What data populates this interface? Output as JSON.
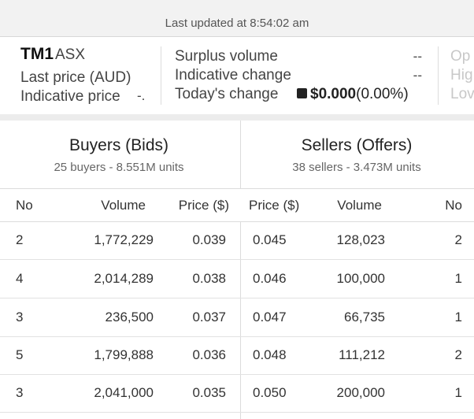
{
  "header": {
    "updated": "Last updated at 8:54:02 am"
  },
  "summary": {
    "symbol": "TM1",
    "exchange": "ASX",
    "last_price_label": "Last price (AUD)",
    "indicative_price_label": "Indicative price",
    "indicative_price_value": "-.",
    "surplus_volume_label": "Surplus volume",
    "surplus_volume_value": "--",
    "indicative_change_label": "Indicative change",
    "indicative_change_value": "--",
    "todays_change_label": "Today's change",
    "todays_change_amount": "$0.000",
    "todays_change_pct": "(0.00%)",
    "right_labels": [
      "Op",
      "Hig",
      "Lov"
    ]
  },
  "buyers": {
    "title": "Buyers (Bids)",
    "subtitle": "25 buyers - 8.551M units"
  },
  "sellers": {
    "title": "Sellers (Offers)",
    "subtitle": "38 sellers - 3.473M units"
  },
  "columns": {
    "buy_no": "No",
    "buy_volume": "Volume",
    "buy_price": "Price ($)",
    "sell_price": "Price ($)",
    "sell_volume": "Volume",
    "sell_no": "No"
  },
  "rows": [
    {
      "buy_no": "2",
      "buy_volume": "1,772,229",
      "buy_price": "0.039",
      "sell_price": "0.045",
      "sell_volume": "128,023",
      "sell_no": "2"
    },
    {
      "buy_no": "4",
      "buy_volume": "2,014,289",
      "buy_price": "0.038",
      "sell_price": "0.046",
      "sell_volume": "100,000",
      "sell_no": "1"
    },
    {
      "buy_no": "3",
      "buy_volume": "236,500",
      "buy_price": "0.037",
      "sell_price": "0.047",
      "sell_volume": "66,735",
      "sell_no": "1"
    },
    {
      "buy_no": "5",
      "buy_volume": "1,799,888",
      "buy_price": "0.036",
      "sell_price": "0.048",
      "sell_volume": "111,212",
      "sell_no": "2"
    },
    {
      "buy_no": "3",
      "buy_volume": "2,041,000",
      "buy_price": "0.035",
      "sell_price": "0.050",
      "sell_volume": "200,000",
      "sell_no": "1"
    }
  ]
}
